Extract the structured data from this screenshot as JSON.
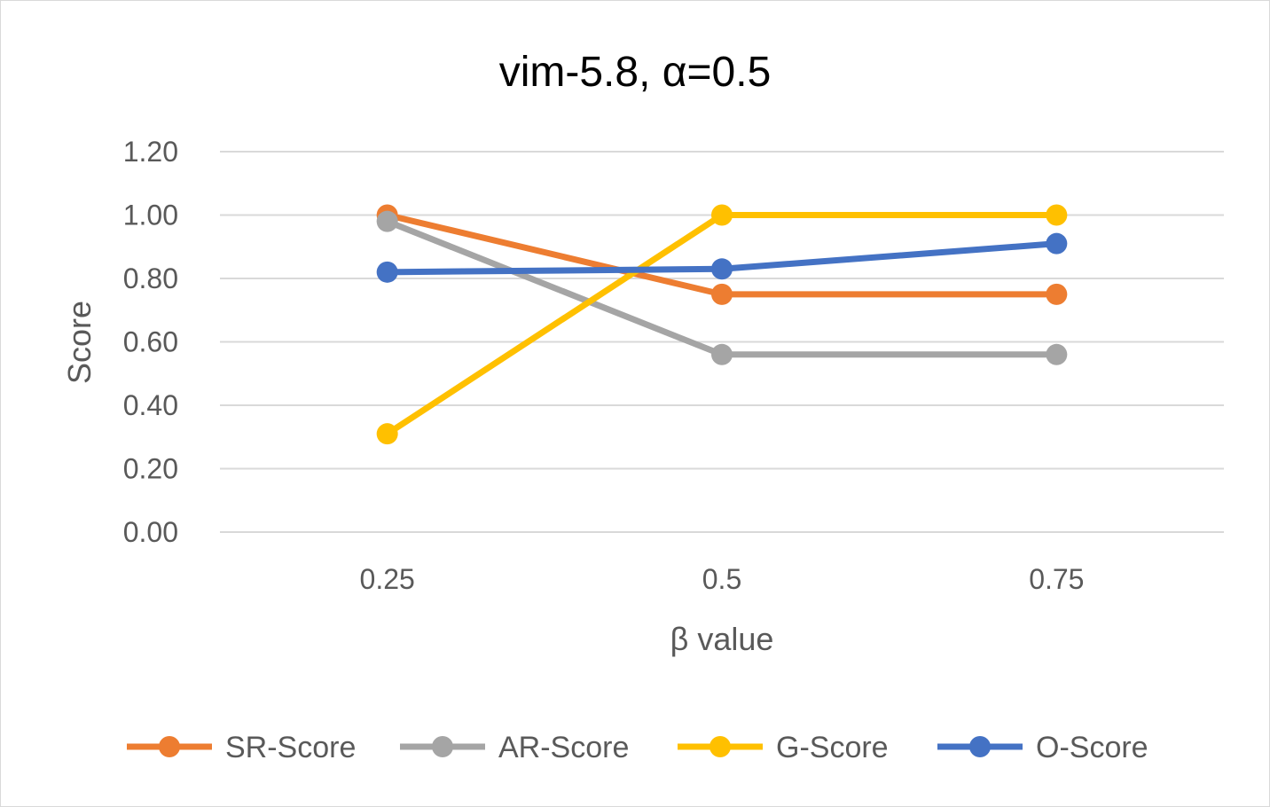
{
  "chart_data": {
    "type": "line",
    "title": "vim-5.8, α=0.5",
    "xlabel": "β value",
    "ylabel": "Score",
    "categories": [
      "0.25",
      "0.5",
      "0.75"
    ],
    "ylim": [
      0,
      1.2
    ],
    "yticks": [
      "0.00",
      "0.20",
      "0.40",
      "0.60",
      "0.80",
      "1.00",
      "1.20"
    ],
    "grid": true,
    "legend_position": "bottom",
    "series": [
      {
        "name": "SR-Score",
        "values": [
          1.0,
          0.75,
          0.75
        ],
        "color": "#ED7D31"
      },
      {
        "name": "AR-Score",
        "values": [
          0.98,
          0.56,
          0.56
        ],
        "color": "#A5A5A5"
      },
      {
        "name": "G-Score",
        "values": [
          0.31,
          1.0,
          1.0
        ],
        "color": "#FFC000"
      },
      {
        "name": "O-Score",
        "values": [
          0.82,
          0.83,
          0.91
        ],
        "color": "#4472C4"
      }
    ]
  }
}
